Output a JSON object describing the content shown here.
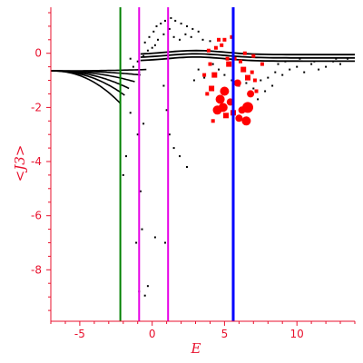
{
  "chart_data": {
    "type": "scatter",
    "xlabel": "E",
    "ylabel": "<J3>",
    "xlim": [
      -7,
      14
    ],
    "ylim": [
      -9.9,
      1.7
    ],
    "x_ticks": [
      -5,
      0,
      5,
      10
    ],
    "x_tick_labels": [
      "-5",
      "0",
      "5",
      "10"
    ],
    "y_ticks": [
      0,
      -2,
      -4,
      -6,
      -8
    ],
    "y_tick_labels": [
      "0",
      "-2",
      "-4",
      "-6",
      "-8"
    ],
    "colors": {
      "axis": "#e8112d",
      "points": "#000000",
      "highlight": "#ff0000"
    },
    "vertical_lines": [
      {
        "x": -2.2,
        "color": "#008000"
      },
      {
        "x": -0.9,
        "color": "#e600e6"
      },
      {
        "x": 1.1,
        "color": "#e600e6"
      },
      {
        "x": 5.6,
        "color": "#0000ff"
      }
    ],
    "curve_families": [
      {
        "x_end": -2.2,
        "y_end": -1.85
      },
      {
        "x_end": -1.9,
        "y_end": -1.55
      },
      {
        "x_end": -1.6,
        "y_end": -1.3
      },
      {
        "x_end": -1.2,
        "y_end": -1.05
      },
      {
        "x_end": -0.8,
        "y_end": -0.8
      },
      {
        "x_end": -0.4,
        "y_end": -0.6
      }
    ],
    "series": [
      {
        "name": "",
        "color": "#000000",
        "points": [
          [
            -0.5,
            0.4
          ],
          [
            -0.2,
            0.6
          ],
          [
            0.1,
            0.8
          ],
          [
            0.3,
            1.0
          ],
          [
            0.6,
            1.1
          ],
          [
            0.9,
            1.2
          ],
          [
            1.3,
            1.3
          ],
          [
            1.6,
            1.2
          ],
          [
            2.0,
            1.1
          ],
          [
            2.4,
            1.0
          ],
          [
            2.8,
            0.9
          ],
          [
            3.2,
            0.8
          ],
          [
            0.0,
            0.2
          ],
          [
            0.4,
            0.5
          ],
          [
            0.8,
            0.7
          ],
          [
            1.2,
            0.9
          ],
          [
            -0.3,
            0.1
          ],
          [
            0.2,
            0.3
          ],
          [
            1.5,
            0.6
          ],
          [
            1.9,
            0.5
          ],
          [
            2.3,
            0.7
          ],
          [
            2.7,
            0.6
          ],
          [
            3.5,
            0.5
          ],
          [
            4.0,
            0.45
          ],
          [
            -1.0,
            -0.3
          ],
          [
            -0.6,
            -0.1
          ],
          [
            -1.3,
            -0.5
          ],
          [
            -0.9,
            -0.7
          ],
          [
            -1.5,
            -0.2
          ],
          [
            -1.0,
            -3.0
          ],
          [
            -0.6,
            -2.6
          ],
          [
            -0.8,
            -5.1
          ],
          [
            -0.7,
            -6.5
          ],
          [
            -1.1,
            -7.0
          ],
          [
            -0.3,
            -8.6
          ],
          [
            -0.9,
            -8.8
          ],
          [
            -0.5,
            -8.95
          ],
          [
            0.8,
            -1.2
          ],
          [
            1.0,
            -2.1
          ],
          [
            1.2,
            -3.0
          ],
          [
            1.5,
            -3.5
          ],
          [
            1.9,
            -3.8
          ],
          [
            2.4,
            -4.2
          ],
          [
            0.2,
            -6.8
          ],
          [
            0.9,
            -7.0
          ],
          [
            -2.0,
            -4.5
          ],
          [
            -1.8,
            -3.8
          ],
          [
            -1.5,
            -2.2
          ],
          [
            4.2,
            -0.4
          ],
          [
            4.6,
            -0.6
          ],
          [
            5.0,
            -0.8
          ],
          [
            5.5,
            -1.0
          ],
          [
            6.0,
            -1.2
          ],
          [
            6.5,
            -1.1
          ],
          [
            7.0,
            -1.3
          ],
          [
            7.5,
            -1.0
          ],
          [
            8.0,
            -0.9
          ],
          [
            8.5,
            -0.7
          ],
          [
            9.0,
            -0.8
          ],
          [
            9.5,
            -0.6
          ],
          [
            10.0,
            -0.5
          ],
          [
            10.5,
            -0.7
          ],
          [
            11.0,
            -0.4
          ],
          [
            11.5,
            -0.6
          ],
          [
            12.0,
            -0.5
          ],
          [
            12.5,
            -0.3
          ],
          [
            13.0,
            -0.4
          ],
          [
            13.5,
            -0.2
          ],
          [
            6.8,
            -1.5
          ],
          [
            7.3,
            -1.7
          ],
          [
            7.8,
            -1.4
          ],
          [
            8.3,
            -1.2
          ],
          [
            3.6,
            -0.9
          ],
          [
            3.2,
            -0.6
          ],
          [
            2.9,
            -1.0
          ],
          [
            8.7,
            -0.4
          ],
          [
            9.2,
            -0.3
          ],
          [
            10.2,
            -0.2
          ],
          [
            11.2,
            -0.3
          ],
          [
            12.7,
            -0.2
          ]
        ]
      },
      {
        "name": "",
        "color": "#ff0000",
        "points": [
          [
            4.7,
            -1.7,
            5
          ],
          [
            4.5,
            -2.1,
            5
          ],
          [
            5.0,
            -1.4,
            5
          ],
          [
            4.9,
            -2.0,
            5
          ],
          [
            6.6,
            -2.0,
            6
          ],
          [
            6.5,
            -2.5,
            5
          ],
          [
            6.2,
            -2.1,
            4
          ],
          [
            6.8,
            -1.5,
            4
          ],
          [
            5.4,
            -1.8,
            4
          ],
          [
            6.0,
            -2.4,
            4
          ],
          [
            5.9,
            -1.1,
            4
          ],
          [
            4.1,
            -1.3,
            3
          ],
          [
            5.3,
            -0.4,
            3
          ],
          [
            6.3,
            -0.6,
            3
          ],
          [
            6.6,
            -0.9,
            3
          ],
          [
            4.3,
            -0.8,
            3
          ],
          [
            4.0,
            -0.4,
            2
          ],
          [
            4.4,
            0.2,
            2
          ],
          [
            4.8,
            0.3,
            2
          ],
          [
            5.2,
            -0.2,
            2
          ],
          [
            5.7,
            -0.2,
            2
          ],
          [
            6.1,
            -0.3,
            2
          ],
          [
            7.0,
            -0.1,
            2
          ],
          [
            7.2,
            -1.4,
            2
          ],
          [
            7.6,
            -0.4,
            2
          ],
          [
            3.6,
            -0.8,
            2
          ],
          [
            3.8,
            -1.5,
            2
          ],
          [
            4.2,
            -2.5,
            2
          ],
          [
            5.1,
            -2.3,
            3
          ],
          [
            5.6,
            -2.2,
            3
          ],
          [
            7.1,
            -1.0,
            2
          ],
          [
            3.9,
            0.1,
            2
          ],
          [
            6.4,
            0.0,
            2
          ],
          [
            5.0,
            0.5,
            2
          ],
          [
            5.5,
            0.6,
            2
          ],
          [
            4.6,
            0.5,
            2
          ],
          [
            6.9,
            -0.7,
            2
          ]
        ]
      }
    ]
  }
}
